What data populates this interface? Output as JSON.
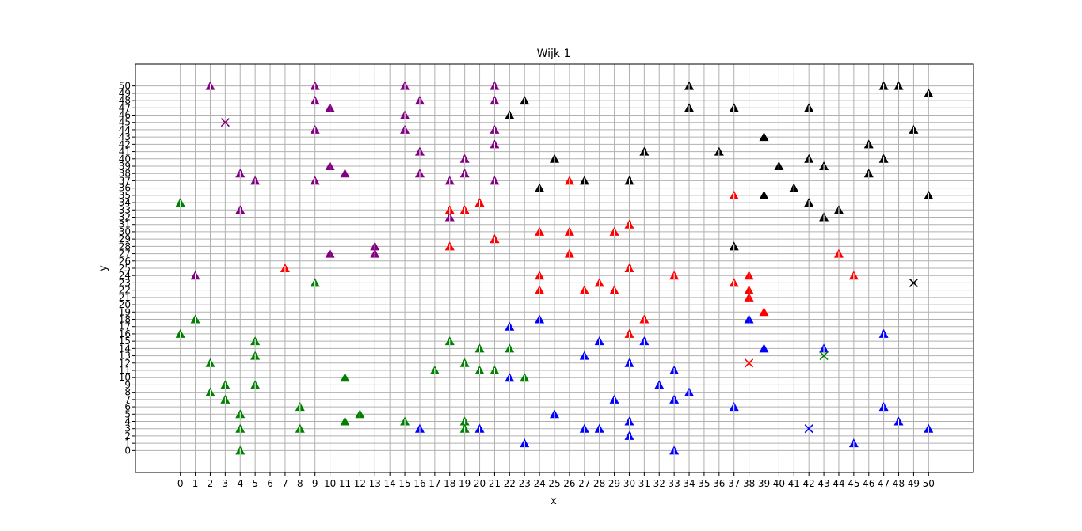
{
  "chart_data": {
    "type": "scatter",
    "title": "Wijk 1",
    "xlabel": "x",
    "ylabel": "y",
    "xlim": [
      -3,
      53
    ],
    "ylim": [
      -3,
      53
    ],
    "grid": true,
    "x_ticks": [
      0,
      1,
      2,
      3,
      4,
      5,
      6,
      7,
      8,
      9,
      10,
      11,
      12,
      13,
      14,
      15,
      16,
      17,
      18,
      19,
      20,
      21,
      22,
      23,
      24,
      25,
      26,
      27,
      28,
      29,
      30,
      31,
      32,
      33,
      34,
      35,
      36,
      37,
      38,
      39,
      40,
      41,
      42,
      43,
      44,
      45,
      46,
      47,
      48,
      49,
      50
    ],
    "y_ticks": [
      0,
      1,
      2,
      3,
      4,
      5,
      6,
      7,
      8,
      9,
      10,
      11,
      12,
      13,
      14,
      15,
      16,
      17,
      18,
      19,
      20,
      21,
      22,
      23,
      24,
      25,
      26,
      27,
      28,
      29,
      30,
      31,
      32,
      33,
      34,
      35,
      36,
      37,
      38,
      39,
      40,
      41,
      42,
      43,
      44,
      45,
      46,
      47,
      48,
      49,
      50
    ],
    "series": [
      {
        "color": "#800080",
        "marker": "triangle",
        "center": [
          3,
          45
        ],
        "points": [
          [
            2,
            50
          ],
          [
            9,
            50
          ],
          [
            15,
            50
          ],
          [
            21,
            50
          ],
          [
            9,
            48
          ],
          [
            16,
            48
          ],
          [
            21,
            48
          ],
          [
            10,
            47
          ],
          [
            15,
            46
          ],
          [
            9,
            44
          ],
          [
            15,
            44
          ],
          [
            21,
            44
          ],
          [
            21,
            42
          ],
          [
            16,
            41
          ],
          [
            19,
            40
          ],
          [
            10,
            39
          ],
          [
            4,
            38
          ],
          [
            11,
            38
          ],
          [
            16,
            38
          ],
          [
            19,
            38
          ],
          [
            5,
            37
          ],
          [
            9,
            37
          ],
          [
            18,
            37
          ],
          [
            21,
            37
          ],
          [
            4,
            33
          ],
          [
            18,
            32
          ],
          [
            21,
            29
          ],
          [
            13,
            28
          ],
          [
            10,
            27
          ],
          [
            13,
            27
          ],
          [
            1,
            24
          ]
        ]
      },
      {
        "color": "#000000",
        "marker": "triangle",
        "center": [
          49,
          23
        ],
        "points": [
          [
            34,
            50
          ],
          [
            47,
            50
          ],
          [
            48,
            50
          ],
          [
            50,
            49
          ],
          [
            23,
            48
          ],
          [
            34,
            47
          ],
          [
            37,
            47
          ],
          [
            42,
            47
          ],
          [
            22,
            46
          ],
          [
            49,
            44
          ],
          [
            39,
            43
          ],
          [
            46,
            42
          ],
          [
            31,
            41
          ],
          [
            36,
            41
          ],
          [
            25,
            40
          ],
          [
            42,
            40
          ],
          [
            47,
            40
          ],
          [
            40,
            39
          ],
          [
            43,
            39
          ],
          [
            46,
            38
          ],
          [
            27,
            37
          ],
          [
            30,
            37
          ],
          [
            24,
            36
          ],
          [
            41,
            36
          ],
          [
            39,
            35
          ],
          [
            50,
            35
          ],
          [
            42,
            34
          ],
          [
            44,
            33
          ],
          [
            43,
            32
          ],
          [
            37,
            28
          ]
        ]
      },
      {
        "color": "#ff0000",
        "marker": "triangle",
        "center": [
          38,
          12
        ],
        "points": [
          [
            26,
            37
          ],
          [
            37,
            35
          ],
          [
            20,
            34
          ],
          [
            18,
            33
          ],
          [
            19,
            33
          ],
          [
            30,
            31
          ],
          [
            24,
            30
          ],
          [
            26,
            30
          ],
          [
            29,
            30
          ],
          [
            21,
            29
          ],
          [
            18,
            28
          ],
          [
            26,
            27
          ],
          [
            44,
            27
          ],
          [
            7,
            25
          ],
          [
            30,
            25
          ],
          [
            24,
            24
          ],
          [
            33,
            24
          ],
          [
            38,
            24
          ],
          [
            45,
            24
          ],
          [
            28,
            23
          ],
          [
            37,
            23
          ],
          [
            24,
            22
          ],
          [
            27,
            22
          ],
          [
            29,
            22
          ],
          [
            38,
            22
          ],
          [
            38,
            21
          ],
          [
            39,
            19
          ],
          [
            31,
            18
          ],
          [
            30,
            16
          ]
        ]
      },
      {
        "color": "#008000",
        "marker": "triangle",
        "center": [
          43,
          13
        ],
        "points": [
          [
            0,
            34
          ],
          [
            9,
            23
          ],
          [
            1,
            18
          ],
          [
            0,
            16
          ],
          [
            5,
            15
          ],
          [
            18,
            15
          ],
          [
            20,
            14
          ],
          [
            22,
            14
          ],
          [
            5,
            13
          ],
          [
            2,
            12
          ],
          [
            19,
            12
          ],
          [
            17,
            11
          ],
          [
            20,
            11
          ],
          [
            21,
            11
          ],
          [
            11,
            10
          ],
          [
            23,
            10
          ],
          [
            3,
            9
          ],
          [
            5,
            9
          ],
          [
            2,
            8
          ],
          [
            3,
            7
          ],
          [
            8,
            6
          ],
          [
            4,
            5
          ],
          [
            12,
            5
          ],
          [
            11,
            4
          ],
          [
            15,
            4
          ],
          [
            19,
            4
          ],
          [
            4,
            3
          ],
          [
            8,
            3
          ],
          [
            19,
            3
          ],
          [
            4,
            0
          ]
        ]
      },
      {
        "color": "#0000ff",
        "marker": "triangle",
        "center": [
          42,
          3
        ],
        "points": [
          [
            24,
            18
          ],
          [
            38,
            18
          ],
          [
            22,
            17
          ],
          [
            47,
            16
          ],
          [
            28,
            15
          ],
          [
            31,
            15
          ],
          [
            39,
            14
          ],
          [
            43,
            14
          ],
          [
            27,
            13
          ],
          [
            30,
            12
          ],
          [
            33,
            11
          ],
          [
            22,
            10
          ],
          [
            32,
            9
          ],
          [
            34,
            8
          ],
          [
            29,
            7
          ],
          [
            33,
            7
          ],
          [
            37,
            6
          ],
          [
            47,
            6
          ],
          [
            25,
            5
          ],
          [
            30,
            4
          ],
          [
            48,
            4
          ],
          [
            16,
            3
          ],
          [
            20,
            3
          ],
          [
            27,
            3
          ],
          [
            28,
            3
          ],
          [
            50,
            3
          ],
          [
            30,
            2
          ],
          [
            23,
            1
          ],
          [
            45,
            1
          ],
          [
            33,
            0
          ]
        ]
      }
    ]
  }
}
